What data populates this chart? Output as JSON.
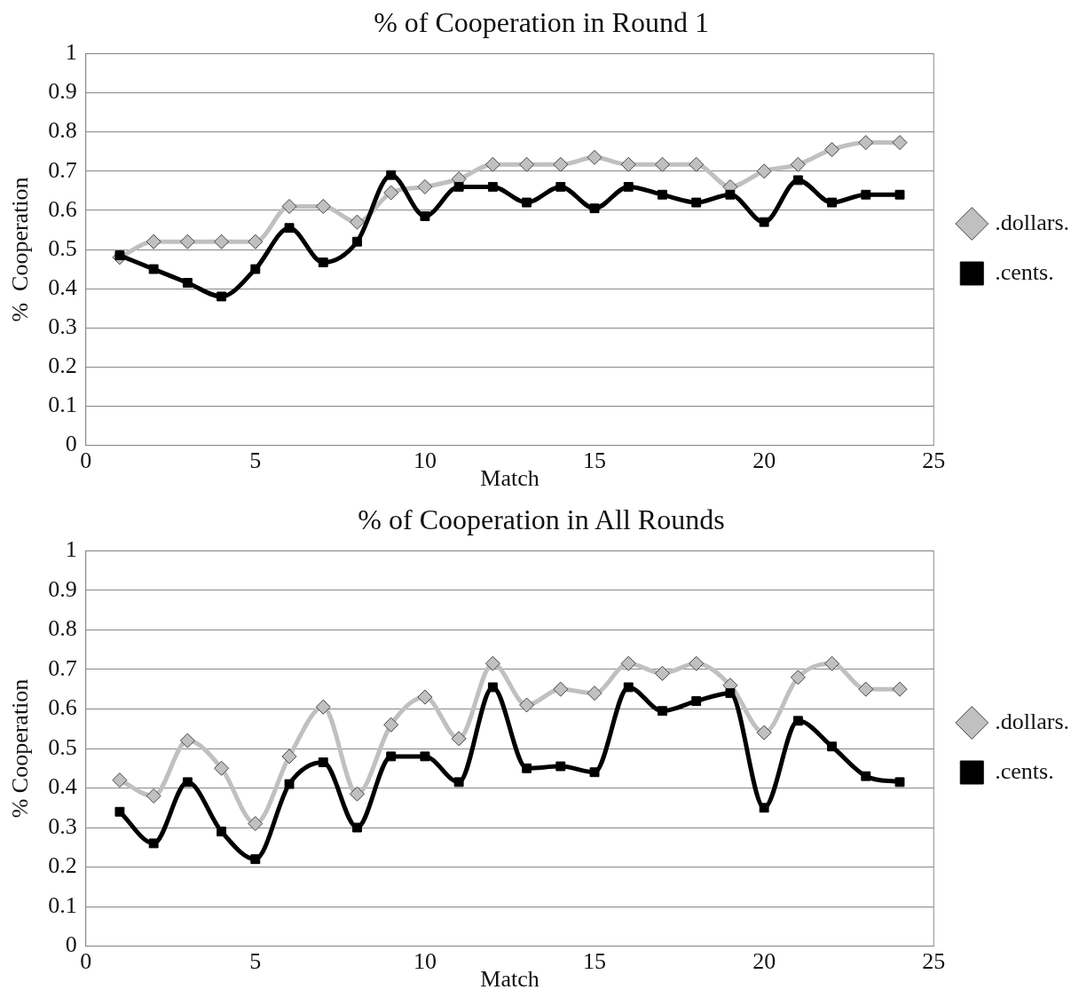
{
  "chart_data": [
    {
      "type": "line",
      "title": "% of Cooperation in Round 1",
      "xlabel": "Match",
      "ylabel": "%  Cooperation",
      "x": [
        1,
        2,
        3,
        4,
        5,
        6,
        7,
        8,
        9,
        10,
        11,
        12,
        13,
        14,
        15,
        16,
        17,
        18,
        19,
        20,
        21,
        22,
        23,
        24
      ],
      "xlim": [
        0,
        25
      ],
      "xticks": [
        0,
        5,
        10,
        15,
        20,
        25
      ],
      "ylim": [
        0,
        1
      ],
      "yticks": [
        0,
        0.1,
        0.2,
        0.3,
        0.4,
        0.5,
        0.6,
        0.7,
        0.8,
        0.9,
        1
      ],
      "grid": "y",
      "legend": "right",
      "series": [
        {
          "name": ".dollars.",
          "color": "#c0c0c0",
          "marker": "diamond",
          "values": [
            0.48,
            0.52,
            0.52,
            0.52,
            0.52,
            0.61,
            0.61,
            0.57,
            0.645,
            0.66,
            0.68,
            0.717,
            0.717,
            0.717,
            0.735,
            0.717,
            0.717,
            0.717,
            0.66,
            0.7,
            0.717,
            0.755,
            0.773,
            0.773
          ]
        },
        {
          "name": ".cents.",
          "color": "#000000",
          "marker": "square",
          "values": [
            0.485,
            0.45,
            0.415,
            0.38,
            0.45,
            0.555,
            0.467,
            0.52,
            0.69,
            0.585,
            0.66,
            0.66,
            0.62,
            0.66,
            0.605,
            0.66,
            0.64,
            0.62,
            0.64,
            0.57,
            0.677,
            0.62,
            0.64,
            0.64
          ]
        }
      ]
    },
    {
      "type": "line",
      "title": "% of Cooperation in All Rounds",
      "xlabel": "Match",
      "ylabel": "% Cooperation",
      "x": [
        1,
        2,
        3,
        4,
        5,
        6,
        7,
        8,
        9,
        10,
        11,
        12,
        13,
        14,
        15,
        16,
        17,
        18,
        19,
        20,
        21,
        22,
        23,
        24
      ],
      "xlim": [
        0,
        25
      ],
      "xticks": [
        0,
        5,
        10,
        15,
        20,
        25
      ],
      "ylim": [
        0,
        1
      ],
      "yticks": [
        0,
        0.1,
        0.2,
        0.3,
        0.4,
        0.5,
        0.6,
        0.7,
        0.8,
        0.9,
        1
      ],
      "grid": "y",
      "legend": "right",
      "series": [
        {
          "name": ".dollars.",
          "color": "#c0c0c0",
          "marker": "diamond",
          "values": [
            0.42,
            0.38,
            0.52,
            0.45,
            0.31,
            0.48,
            0.605,
            0.385,
            0.56,
            0.63,
            0.525,
            0.715,
            0.61,
            0.65,
            0.64,
            0.715,
            0.69,
            0.715,
            0.66,
            0.54,
            0.68,
            0.715,
            0.65,
            0.65
          ]
        },
        {
          "name": ".cents.",
          "color": "#000000",
          "marker": "square",
          "values": [
            0.34,
            0.26,
            0.415,
            0.29,
            0.22,
            0.41,
            0.465,
            0.3,
            0.48,
            0.48,
            0.415,
            0.655,
            0.45,
            0.455,
            0.44,
            0.655,
            0.595,
            0.62,
            0.64,
            0.35,
            0.57,
            0.505,
            0.43,
            0.415
          ]
        }
      ]
    }
  ]
}
